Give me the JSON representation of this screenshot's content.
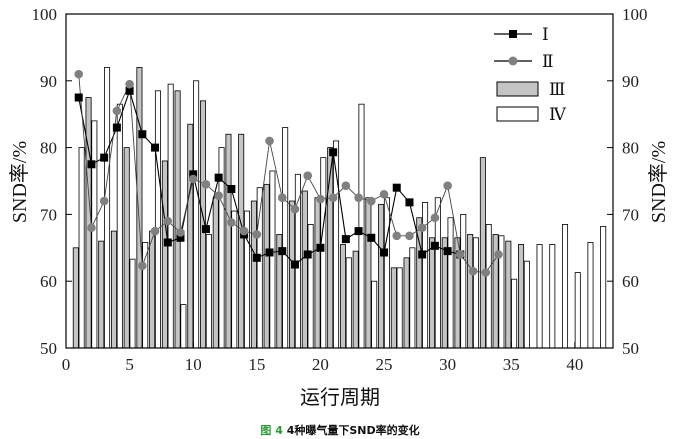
{
  "chart_data": {
    "type": "bar",
    "xlabel": "运行周期",
    "ylabel": "SND率/%",
    "ylabel_right": "SND率/%",
    "xlim": [
      0,
      43
    ],
    "ylim": [
      50,
      100
    ],
    "xticks": [
      0,
      5,
      10,
      15,
      20,
      25,
      30,
      35,
      40
    ],
    "yticks": [
      50,
      60,
      70,
      80,
      90,
      100
    ],
    "grid": false,
    "legend_position": "top-right",
    "colors": {
      "III": "#c4c4c4",
      "IV": "#ffffff",
      "line": "#000000",
      "II_marker": "#808080",
      "I_marker": "#000000"
    },
    "series": [
      {
        "name": "Ⅰ",
        "kind": "line",
        "marker": "square",
        "x": [
          1,
          2,
          3,
          4,
          5,
          6,
          7,
          8,
          9,
          10,
          11,
          12,
          13,
          14,
          15,
          16,
          17,
          18,
          19,
          20,
          21,
          22,
          23,
          24,
          25,
          26,
          27,
          28,
          29,
          30,
          31
        ],
        "values": [
          87.5,
          77.5,
          78.5,
          83,
          88.5,
          82,
          80,
          65.8,
          66.5,
          76,
          67.8,
          75.5,
          73.8,
          67,
          63.5,
          64.3,
          64.5,
          62.5,
          64,
          65,
          79.3,
          66.3,
          67.5,
          66.5,
          64.3,
          74,
          71.8,
          64,
          65.3,
          64.5,
          64
        ]
      },
      {
        "name": "Ⅱ",
        "kind": "line",
        "marker": "circle",
        "x": [
          1,
          2,
          3,
          4,
          5,
          6,
          7,
          8,
          9,
          10,
          11,
          12,
          13,
          14,
          15,
          16,
          17,
          18,
          19,
          20,
          21,
          22,
          23,
          24,
          25,
          26,
          27,
          28,
          29,
          30,
          31,
          32,
          33,
          34
        ],
        "values": [
          91,
          68,
          72,
          85.5,
          89.5,
          62.3,
          67.5,
          69,
          67.3,
          75.3,
          74.5,
          72.8,
          68.8,
          67.5,
          67,
          81,
          72.5,
          70.8,
          75.8,
          72.3,
          72.5,
          74.3,
          72.5,
          72,
          73,
          66.8,
          66.8,
          68,
          69.5,
          74.3,
          64,
          61.5,
          61.3,
          64
        ]
      },
      {
        "name": "Ⅲ",
        "kind": "bar",
        "x": [
          1,
          2,
          3,
          4,
          5,
          6,
          7,
          8,
          9,
          10,
          11,
          12,
          13,
          14,
          15,
          16,
          17,
          18,
          19,
          20,
          21,
          22,
          23,
          24,
          25,
          26,
          27,
          28,
          29,
          30,
          31,
          32,
          33,
          34,
          35,
          36
        ],
        "values": [
          65,
          87.5,
          66,
          67.5,
          80,
          92,
          67.5,
          78,
          88.5,
          83.5,
          87,
          72.5,
          82,
          82,
          72,
          74.5,
          67,
          72,
          73.5,
          72.5,
          80,
          65.5,
          64.5,
          72.5,
          71.5,
          62,
          63.5,
          69.5,
          66.5,
          66.5,
          66.5,
          67,
          78.5,
          67,
          66,
          65.5
        ]
      },
      {
        "name": "Ⅳ",
        "kind": "bar",
        "x": [
          1,
          2,
          3,
          4,
          5,
          6,
          7,
          8,
          9,
          10,
          11,
          12,
          13,
          14,
          15,
          16,
          17,
          18,
          19,
          20,
          21,
          22,
          23,
          24,
          25,
          26,
          27,
          28,
          29,
          30,
          31,
          32,
          33,
          34,
          35,
          36,
          37,
          38,
          39,
          40,
          41,
          42
        ],
        "values": [
          80,
          84,
          92,
          86.5,
          63.3,
          65.8,
          88.5,
          89.5,
          56.5,
          90,
          67,
          80,
          70.5,
          70.5,
          74,
          76.5,
          83,
          76,
          68.5,
          78.5,
          81,
          63.5,
          86.5,
          60,
          72.5,
          62,
          65,
          71.8,
          72.5,
          69.5,
          70,
          66.5,
          68.5,
          66.8,
          60.3,
          63,
          65.5,
          65.5,
          68.5,
          61.3,
          65.8,
          68.2
        ]
      }
    ]
  },
  "caption": {
    "figure_no": "图 4",
    "text": "4种曝气量下SND率的变化"
  }
}
